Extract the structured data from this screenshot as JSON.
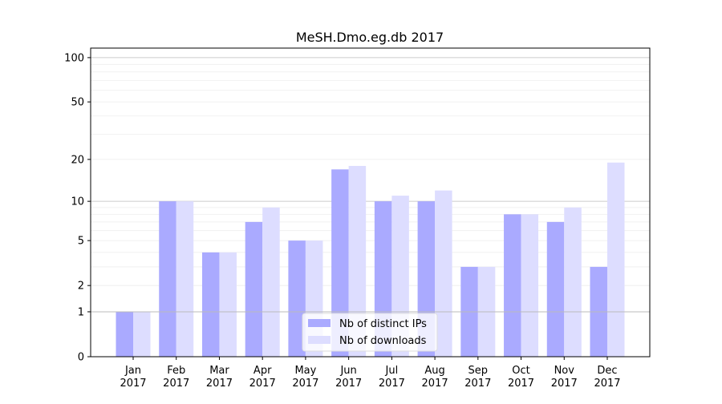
{
  "chart_data": {
    "type": "bar",
    "title": "MeSH.Dmo.eg.db 2017",
    "xlabel": "",
    "ylabel": "",
    "scale": "log(1+y)",
    "ylim": [
      0,
      116
    ],
    "y_ticks": [
      0,
      1,
      2,
      5,
      10,
      20,
      50,
      100
    ],
    "y_tick_labels": [
      "0",
      "1",
      "2",
      "5",
      "10",
      "20",
      "50",
      "100"
    ],
    "grid": "horizontal",
    "legend_position": "bottom-center",
    "categories": [
      "Jan",
      "Feb",
      "Mar",
      "Apr",
      "May",
      "Jun",
      "Jul",
      "Aug",
      "Sep",
      "Oct",
      "Nov",
      "Dec"
    ],
    "category_year": "2017",
    "series": [
      {
        "name": "Nb of distinct IPs",
        "color": "#aaaaff",
        "values": [
          1,
          10,
          4,
          7,
          5,
          17,
          10,
          10,
          3,
          8,
          7,
          3
        ]
      },
      {
        "name": "Nb of downloads",
        "color": "#ddddff",
        "values": [
          1,
          10,
          4,
          9,
          5,
          18,
          11,
          12,
          3,
          8,
          9,
          19
        ]
      }
    ]
  }
}
